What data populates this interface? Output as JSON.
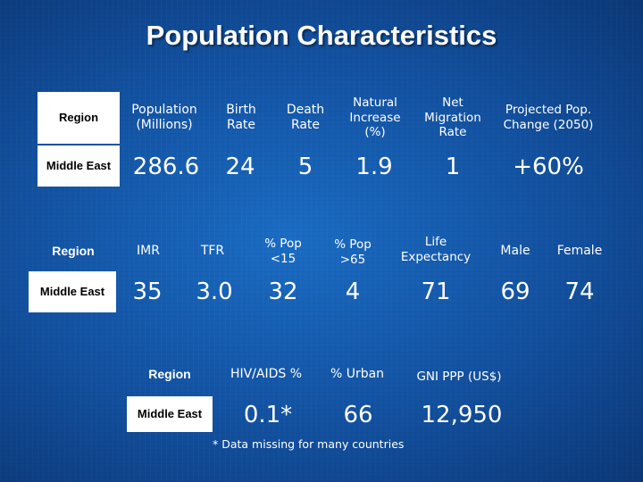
{
  "title": "Population Characteristics",
  "table1": {
    "region_label": "Region",
    "region_value": "Middle East",
    "headers": [
      "Population (Millions)",
      "Birth Rate",
      "Death Rate",
      "Natural Increase (%)",
      "Net Migration Rate",
      "Projected Pop. Change (2050)"
    ],
    "values": [
      "286.6",
      "24",
      "5",
      "1.9",
      "1",
      "+60%"
    ]
  },
  "table2": {
    "region_label": "Region",
    "region_value": "Middle East",
    "headers": [
      "IMR",
      "TFR",
      "% Pop <15",
      "% Pop >65",
      "Life Expectancy",
      "Male",
      "Female"
    ],
    "values": [
      "35",
      "3.0",
      "32",
      "4",
      "71",
      "69",
      "74"
    ]
  },
  "table3": {
    "region_label": "Region",
    "region_value": "Middle East",
    "headers": [
      "HIV/AIDS %",
      "% Urban",
      "GNI PPP (US$)"
    ],
    "values": [
      "0.1*",
      "66",
      "12,950"
    ]
  },
  "footnote": "* Data missing for many countries"
}
